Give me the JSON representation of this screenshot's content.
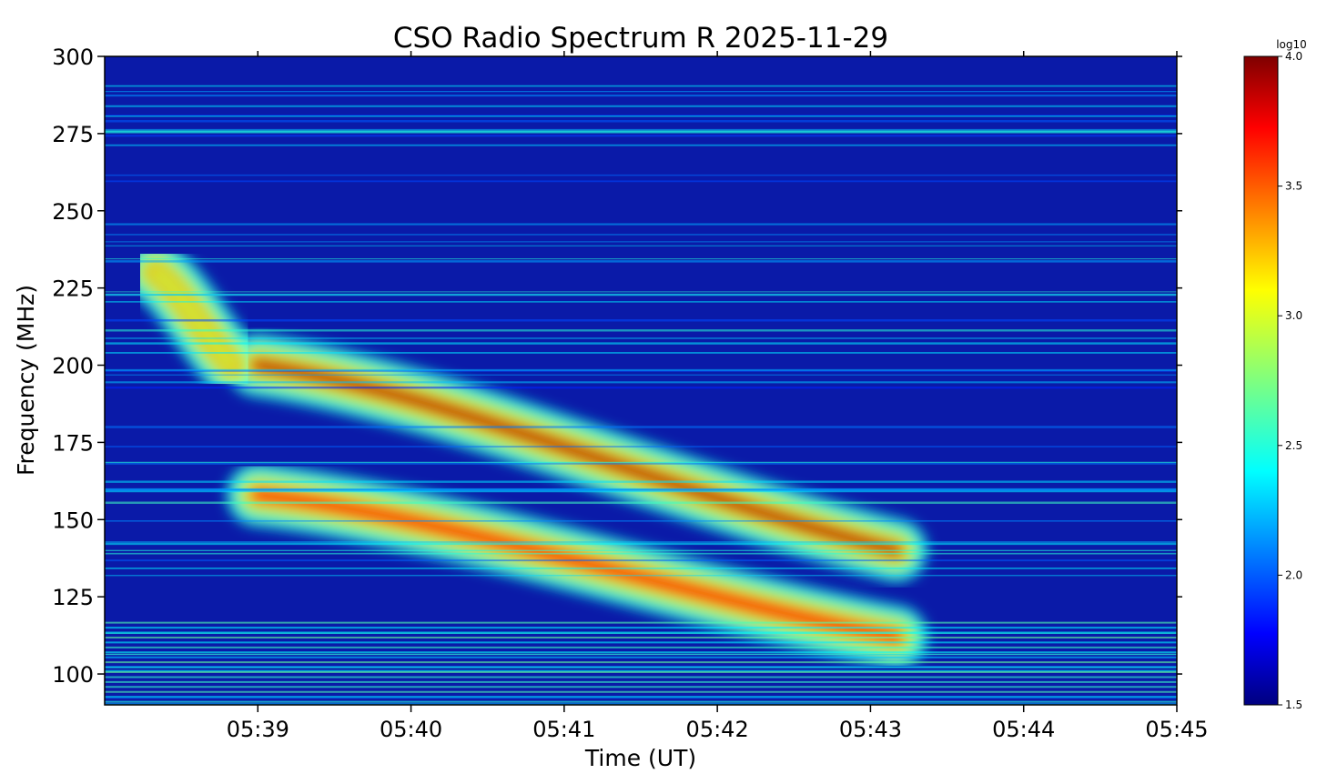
{
  "chart_data": {
    "type": "heatmap",
    "title": "CSO Radio Spectrum R 2025-11-29",
    "xlabel": "Time (UT)",
    "ylabel": "Frequency (MHz)",
    "x_range": [
      "05:38:00",
      "05:45:00"
    ],
    "x_ticks": [
      "05:39",
      "05:40",
      "05:41",
      "05:42",
      "05:43",
      "05:44",
      "05:45"
    ],
    "ylim": [
      90,
      300
    ],
    "y_ticks": [
      100,
      125,
      150,
      175,
      200,
      225,
      250,
      275,
      300
    ],
    "colorbar": {
      "label": "log10",
      "colormap": "jet",
      "range": [
        1.5,
        4.0
      ],
      "ticks": [
        "1.5",
        "2.0",
        "2.5",
        "3.0",
        "3.5",
        "4.0"
      ]
    },
    "features": [
      {
        "type": "type II burst lane",
        "start": [
          "05:39:00",
          200
        ],
        "end": [
          "05:43:10",
          140
        ],
        "peak_log10": 3.9
      },
      {
        "type": "type II burst lane",
        "start": [
          "05:39:00",
          158
        ],
        "end": [
          "05:43:10",
          112
        ],
        "peak_log10": 3.7
      },
      {
        "type": "early emission patch",
        "start": [
          "05:38:20",
          230
        ],
        "end": [
          "05:38:50",
          200
        ],
        "peak_log10": 2.9
      }
    ],
    "background_log10": 1.8
  }
}
